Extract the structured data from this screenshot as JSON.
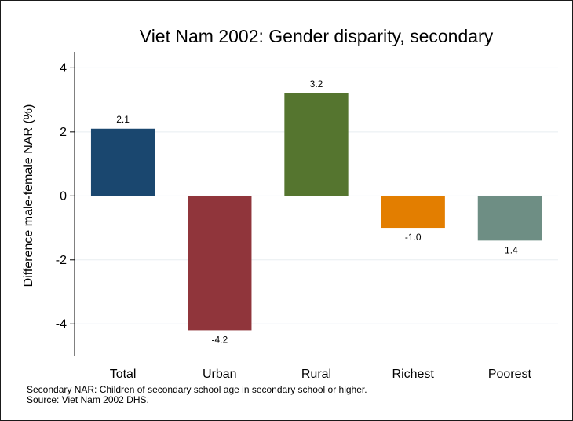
{
  "chart_data": {
    "type": "bar",
    "title": "Viet Nam 2002: Gender disparity, secondary",
    "xlabel": "",
    "ylabel": "Difference male-female NAR (%)",
    "categories": [
      "Total",
      "Urban",
      "Rural",
      "Richest",
      "Poorest"
    ],
    "values": [
      2.1,
      -4.2,
      3.2,
      -1.0,
      -1.4
    ],
    "value_labels": [
      "2.1",
      "-4.2",
      "3.2",
      "-1.0",
      "-1.4"
    ],
    "colors": [
      "#1a476f",
      "#90353b",
      "#55752f",
      "#e37e00",
      "#6e8e84"
    ],
    "ylim": [
      -5,
      4.5
    ],
    "yticks": [
      -4,
      -2,
      0,
      2,
      4
    ],
    "ytick_labels": [
      "-4",
      "-2",
      "0",
      "2",
      "4"
    ],
    "grid": true,
    "legend": "none"
  },
  "notes": {
    "line1": "Secondary NAR: Children of secondary school age in secondary school or higher.",
    "line2": "Source: Viet Nam 2002 DHS."
  }
}
